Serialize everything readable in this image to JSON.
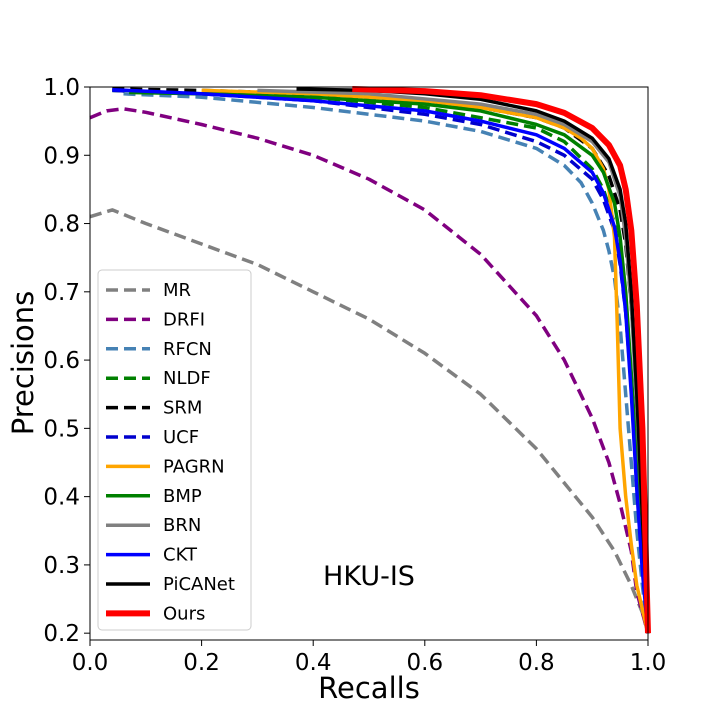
{
  "chart_data": {
    "type": "line",
    "title": "",
    "annotation": "HKU-IS",
    "xlabel": "Recalls",
    "ylabel": "Precisions",
    "xlim": [
      0.0,
      1.0
    ],
    "ylim": [
      0.19,
      1.0
    ],
    "xticks": [
      "0.0",
      "0.2",
      "0.4",
      "0.6",
      "0.8",
      "1.0"
    ],
    "yticks": [
      "0.2",
      "0.3",
      "0.4",
      "0.5",
      "0.6",
      "0.7",
      "0.8",
      "0.9",
      "1.0"
    ],
    "grid": false,
    "legend_position": "lower-left",
    "series": [
      {
        "name": "MR",
        "color": "#808080",
        "style": "dashed",
        "x": [
          0.0,
          0.04,
          0.1,
          0.2,
          0.3,
          0.4,
          0.5,
          0.6,
          0.7,
          0.8,
          0.85,
          0.9,
          0.94,
          0.97,
          0.99,
          1.0
        ],
        "y": [
          0.81,
          0.82,
          0.8,
          0.77,
          0.74,
          0.7,
          0.66,
          0.61,
          0.55,
          0.47,
          0.42,
          0.37,
          0.32,
          0.27,
          0.23,
          0.2
        ]
      },
      {
        "name": "DRFI",
        "color": "#800080",
        "style": "dashed",
        "x": [
          0.0,
          0.03,
          0.06,
          0.1,
          0.2,
          0.3,
          0.4,
          0.5,
          0.6,
          0.7,
          0.8,
          0.85,
          0.9,
          0.93,
          0.95,
          0.97,
          0.98,
          1.0
        ],
        "y": [
          0.955,
          0.965,
          0.968,
          0.963,
          0.945,
          0.925,
          0.9,
          0.865,
          0.82,
          0.755,
          0.665,
          0.6,
          0.515,
          0.45,
          0.39,
          0.32,
          0.26,
          0.2
        ]
      },
      {
        "name": "RFCN",
        "color": "#4682B4",
        "style": "dashed",
        "x": [
          0.06,
          0.2,
          0.4,
          0.6,
          0.7,
          0.8,
          0.85,
          0.88,
          0.9,
          0.92,
          0.93,
          0.94,
          0.95,
          0.96,
          0.97,
          0.98,
          0.99,
          1.0
        ],
        "y": [
          0.99,
          0.985,
          0.97,
          0.95,
          0.935,
          0.91,
          0.885,
          0.86,
          0.83,
          0.79,
          0.76,
          0.72,
          0.65,
          0.55,
          0.45,
          0.35,
          0.27,
          0.2
        ]
      },
      {
        "name": "NLDF",
        "color": "#008000",
        "style": "dashed",
        "x": [
          0.04,
          0.2,
          0.4,
          0.6,
          0.7,
          0.8,
          0.85,
          0.9,
          0.92,
          0.94,
          0.95,
          0.96,
          0.97,
          0.98,
          0.99,
          1.0
        ],
        "y": [
          0.995,
          0.99,
          0.985,
          0.97,
          0.955,
          0.94,
          0.92,
          0.88,
          0.85,
          0.8,
          0.75,
          0.68,
          0.56,
          0.42,
          0.3,
          0.2
        ]
      },
      {
        "name": "SRM",
        "color": "#000000",
        "style": "dashed",
        "x": [
          0.04,
          0.2,
          0.4,
          0.6,
          0.7,
          0.8,
          0.85,
          0.9,
          0.93,
          0.95,
          0.96,
          0.97,
          0.98,
          0.99,
          1.0
        ],
        "y": [
          0.997,
          0.995,
          0.99,
          0.98,
          0.97,
          0.955,
          0.94,
          0.91,
          0.87,
          0.82,
          0.77,
          0.68,
          0.55,
          0.38,
          0.2
        ]
      },
      {
        "name": "UCF",
        "color": "#0000CD",
        "style": "dashed",
        "x": [
          0.04,
          0.2,
          0.4,
          0.6,
          0.7,
          0.8,
          0.85,
          0.9,
          0.92,
          0.94,
          0.95,
          0.96,
          0.97,
          0.98,
          0.99,
          1.0
        ],
        "y": [
          0.995,
          0.99,
          0.98,
          0.96,
          0.945,
          0.92,
          0.9,
          0.865,
          0.835,
          0.79,
          0.74,
          0.67,
          0.56,
          0.42,
          0.3,
          0.2
        ]
      },
      {
        "name": "PAGRN",
        "color": "#FFA500",
        "style": "solid",
        "x": [
          0.2,
          0.4,
          0.6,
          0.7,
          0.8,
          0.85,
          0.88,
          0.9,
          0.92,
          0.93,
          0.94,
          0.945,
          0.95,
          0.96,
          0.97,
          0.98,
          1.0
        ],
        "y": [
          0.995,
          0.99,
          0.98,
          0.97,
          0.955,
          0.94,
          0.925,
          0.91,
          0.88,
          0.85,
          0.78,
          0.65,
          0.5,
          0.4,
          0.33,
          0.27,
          0.2
        ]
      },
      {
        "name": "BMP",
        "color": "#008000",
        "style": "solid",
        "x": [
          0.07,
          0.2,
          0.4,
          0.6,
          0.7,
          0.8,
          0.85,
          0.9,
          0.92,
          0.94,
          0.95,
          0.96,
          0.97,
          0.98,
          0.99,
          1.0
        ],
        "y": [
          0.992,
          0.99,
          0.985,
          0.975,
          0.965,
          0.945,
          0.93,
          0.9,
          0.875,
          0.83,
          0.78,
          0.7,
          0.58,
          0.45,
          0.32,
          0.2
        ]
      },
      {
        "name": "BRN",
        "color": "#808080",
        "style": "solid",
        "x": [
          0.3,
          0.5,
          0.7,
          0.8,
          0.85,
          0.9,
          0.93,
          0.95,
          0.96,
          0.97,
          0.98,
          0.99,
          1.0
        ],
        "y": [
          0.995,
          0.99,
          0.975,
          0.96,
          0.945,
          0.92,
          0.89,
          0.84,
          0.78,
          0.68,
          0.53,
          0.37,
          0.2
        ]
      },
      {
        "name": "CKT",
        "color": "#0000FF",
        "style": "solid",
        "x": [
          0.04,
          0.2,
          0.4,
          0.6,
          0.7,
          0.8,
          0.85,
          0.9,
          0.92,
          0.94,
          0.95,
          0.96,
          0.97,
          0.98,
          0.99,
          1.0
        ],
        "y": [
          0.996,
          0.99,
          0.98,
          0.965,
          0.95,
          0.93,
          0.91,
          0.875,
          0.845,
          0.795,
          0.745,
          0.67,
          0.55,
          0.41,
          0.29,
          0.2
        ]
      },
      {
        "name": "PiCANet",
        "color": "#000000",
        "style": "solid",
        "x": [
          0.37,
          0.5,
          0.6,
          0.7,
          0.8,
          0.85,
          0.9,
          0.93,
          0.95,
          0.96,
          0.97,
          0.98,
          0.99,
          1.0
        ],
        "y": [
          0.997,
          0.995,
          0.99,
          0.982,
          0.965,
          0.95,
          0.925,
          0.895,
          0.85,
          0.8,
          0.7,
          0.55,
          0.37,
          0.2
        ]
      },
      {
        "name": "Ours",
        "color": "#FF0000",
        "style": "solid",
        "x": [
          0.47,
          0.6,
          0.7,
          0.8,
          0.85,
          0.9,
          0.93,
          0.95,
          0.96,
          0.97,
          0.98,
          0.99,
          0.995,
          1.0
        ],
        "y": [
          0.997,
          0.994,
          0.988,
          0.975,
          0.962,
          0.94,
          0.915,
          0.885,
          0.85,
          0.79,
          0.68,
          0.5,
          0.35,
          0.2
        ]
      }
    ]
  }
}
